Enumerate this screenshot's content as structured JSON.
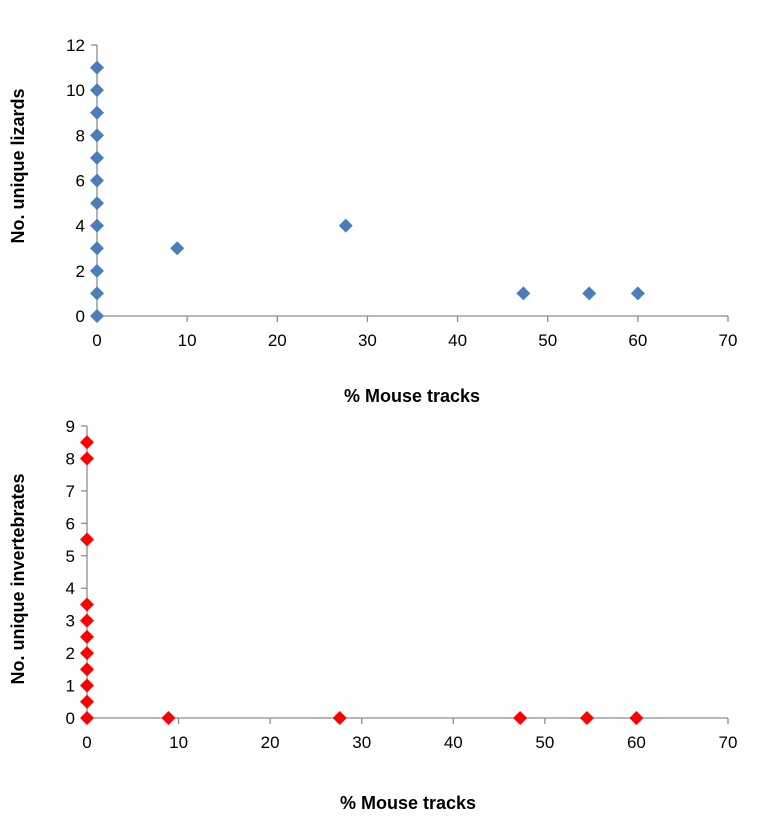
{
  "chart_data": [
    {
      "type": "scatter",
      "title": "",
      "xlabel": "% Mouse tracks",
      "ylabel": "No. unique lizards",
      "xlim": [
        0,
        70
      ],
      "ylim": [
        0,
        12
      ],
      "xticks": [
        0,
        10,
        20,
        30,
        40,
        50,
        60,
        70
      ],
      "yticks": [
        0,
        2,
        4,
        6,
        8,
        10,
        12
      ],
      "grid": false,
      "legend": "none",
      "marker": "diamond",
      "color": "#4a7ebb",
      "series": [
        {
          "points": [
            [
              0,
              0
            ],
            [
              0,
              1
            ],
            [
              0,
              2
            ],
            [
              0,
              3
            ],
            [
              0,
              4
            ],
            [
              0,
              5
            ],
            [
              0,
              6
            ],
            [
              0,
              7
            ],
            [
              0,
              8
            ],
            [
              0,
              9
            ],
            [
              0,
              10
            ],
            [
              0,
              11
            ],
            [
              8.9,
              3
            ],
            [
              27.6,
              4
            ],
            [
              47.3,
              1
            ],
            [
              54.6,
              1
            ],
            [
              60.0,
              1
            ]
          ]
        }
      ]
    },
    {
      "type": "scatter",
      "title": "",
      "xlabel": "% Mouse tracks",
      "ylabel": "No. unique invertebrates",
      "xlim": [
        0,
        70
      ],
      "ylim": [
        0,
        9
      ],
      "xticks": [
        0,
        10,
        20,
        30,
        40,
        50,
        60,
        70
      ],
      "yticks": [
        0,
        1,
        2,
        3,
        4,
        5,
        6,
        7,
        8,
        9
      ],
      "grid": false,
      "legend": "none",
      "marker": "diamond",
      "color": "#ff0000",
      "series": [
        {
          "points": [
            [
              0,
              0
            ],
            [
              0,
              0.5
            ],
            [
              0,
              1
            ],
            [
              0,
              1.5
            ],
            [
              0,
              2
            ],
            [
              0,
              2.5
            ],
            [
              0,
              3
            ],
            [
              0,
              3.5
            ],
            [
              0,
              5.5
            ],
            [
              0,
              8
            ],
            [
              0,
              8.5
            ],
            [
              8.9,
              0
            ],
            [
              27.6,
              0
            ],
            [
              47.3,
              0
            ],
            [
              54.6,
              0
            ],
            [
              60.0,
              0
            ]
          ]
        }
      ]
    }
  ]
}
